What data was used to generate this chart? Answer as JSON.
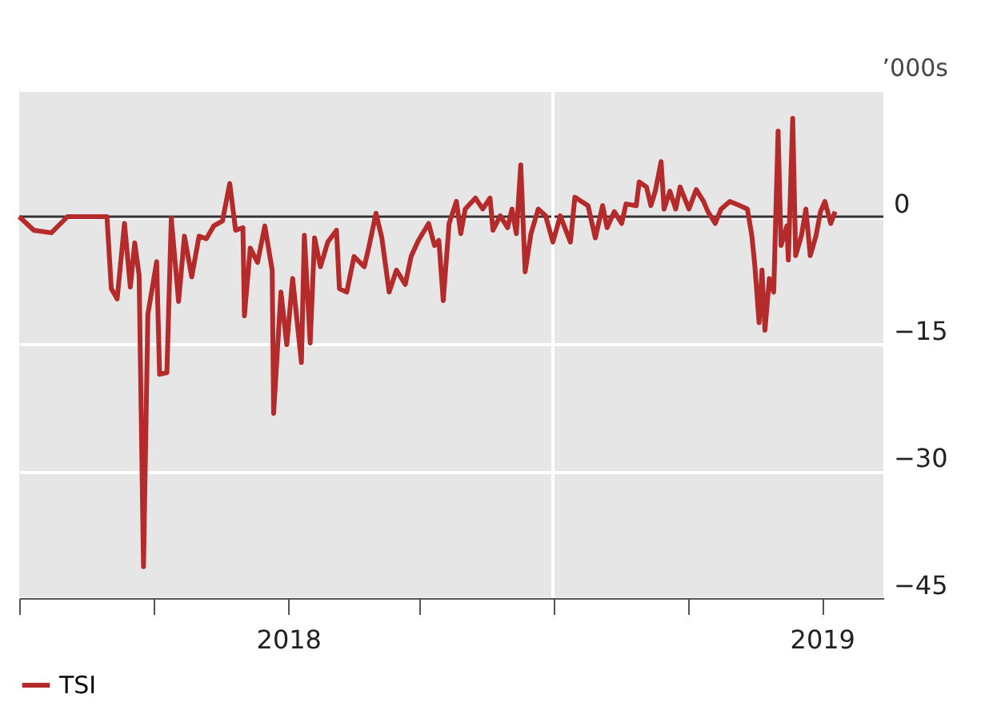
{
  "chart_data": {
    "type": "line",
    "ylabel": "’000s",
    "legend": "bottom left",
    "grid": "y",
    "line_style": "solid",
    "marker": "none",
    "xlim": [
      "2017-07-01",
      "2019-02-12"
    ],
    "ylim": [
      -45,
      15
    ],
    "yticks": [
      {
        "value": -45,
        "label": "−45"
      },
      {
        "value": -30,
        "label": "−30"
      },
      {
        "value": -15,
        "label": "−15"
      },
      0,
      {
        "value": 15,
        "label": null
      }
    ],
    "xticks": [
      {
        "value": "2017-07-01",
        "label": null
      },
      {
        "value": "2017-10-01",
        "label": null
      },
      {
        "value": "2018-01-01",
        "label": "2018"
      },
      {
        "value": "2018-04-01",
        "label": null
      },
      {
        "value": "2018-07-01",
        "label": null
      },
      {
        "value": "2018-10-01",
        "label": null
      },
      {
        "value": "2019-01-01",
        "label": "2019"
      }
    ],
    "ref_lines": [
      {
        "axis": "y",
        "value": 0,
        "label": null,
        "color": "#333333"
      },
      {
        "axis": "x",
        "value": "2018-07-01",
        "label": null,
        "color": "#ffffff"
      }
    ],
    "series": [
      {
        "name": "TSI",
        "color": "#b52a2a",
        "x": [
          "2017-07-01",
          "2017-07-11",
          "2017-07-23",
          "2017-08-03",
          "2017-08-30",
          "2017-09-02",
          "2017-09-06",
          "2017-09-11",
          "2017-09-15",
          "2017-09-18",
          "2017-09-21",
          "2017-09-24",
          "2017-09-27",
          "2017-10-03",
          "2017-10-05",
          "2017-10-10",
          "2017-10-13",
          "2017-10-18",
          "2017-10-22",
          "2017-10-27",
          "2017-11-01",
          "2017-11-06",
          "2017-11-11",
          "2017-11-17",
          "2017-11-22",
          "2017-11-26",
          "2017-12-01",
          "2017-12-02",
          "2017-12-06",
          "2017-12-11",
          "2017-12-16",
          "2017-12-21",
          "2017-12-22",
          "2017-12-27",
          "2017-12-31",
          "2018-01-04",
          "2018-01-10",
          "2018-01-12",
          "2018-01-16",
          "2018-01-19",
          "2018-01-23",
          "2018-01-28",
          "2018-02-03",
          "2018-02-05",
          "2018-02-10",
          "2018-02-15",
          "2018-02-22",
          "2018-02-25",
          "2018-03-02",
          "2018-03-06",
          "2018-03-11",
          "2018-03-16",
          "2018-03-22",
          "2018-03-26",
          "2018-03-31",
          "2018-04-07",
          "2018-04-11",
          "2018-04-14",
          "2018-04-17",
          "2018-04-21",
          "2018-04-26",
          "2018-04-29",
          "2018-05-02",
          "2018-05-09",
          "2018-05-14",
          "2018-05-19",
          "2018-05-21",
          "2018-05-26",
          "2018-05-31",
          "2018-06-03",
          "2018-06-06",
          "2018-06-09",
          "2018-06-12",
          "2018-06-16",
          "2018-06-21",
          "2018-06-26",
          "2018-07-01",
          "2018-07-06",
          "2018-07-13",
          "2018-07-16",
          "2018-07-25",
          "2018-07-30",
          "2018-08-04",
          "2018-08-07",
          "2018-08-12",
          "2018-08-17",
          "2018-08-20",
          "2018-08-27",
          "2018-08-29",
          "2018-09-03",
          "2018-09-06",
          "2018-09-09",
          "2018-09-13",
          "2018-09-15",
          "2018-09-19",
          "2018-09-23",
          "2018-09-26",
          "2018-10-02",
          "2018-10-07",
          "2018-10-12",
          "2018-10-15",
          "2018-10-20",
          "2018-10-24",
          "2018-10-30",
          "2018-11-06",
          "2018-11-11",
          "2018-11-14",
          "2018-11-16",
          "2018-11-19",
          "2018-11-21",
          "2018-11-23",
          "2018-11-26",
          "2018-11-29",
          "2018-12-02",
          "2018-12-04",
          "2018-12-08",
          "2018-12-09",
          "2018-12-12",
          "2018-12-14",
          "2018-12-18",
          "2018-12-21",
          "2018-12-24",
          "2018-12-28",
          "2018-12-31",
          "2019-01-03",
          "2019-01-07",
          "2019-01-10"
        ],
        "values": [
          0,
          -1.6,
          -1.9,
          0,
          0,
          -8.5,
          -9.7,
          -0.8,
          -8.3,
          -3.1,
          -6.9,
          -41.3,
          -11.5,
          -5.3,
          -18.6,
          -18.4,
          -0.2,
          -10,
          -2.3,
          -7.1,
          -2.3,
          -2.6,
          -1.1,
          -0.5,
          3.9,
          -1.6,
          -1.3,
          -11.7,
          -3.7,
          -5.4,
          -1.1,
          -6.3,
          -23.2,
          -8.9,
          -15.1,
          -7.3,
          -17.2,
          -2.2,
          -14.9,
          -2.5,
          -5.9,
          -3.0,
          -1.6,
          -8.5,
          -8.9,
          -4.7,
          -5.9,
          -3.7,
          0.4,
          -2.5,
          -8.9,
          -6.3,
          -8.0,
          -4.7,
          -2.8,
          -0.8,
          -3.4,
          -2.8,
          -9.9,
          -0.8,
          1.8,
          -2.0,
          0.9,
          2.2,
          0.9,
          2.2,
          -1.6,
          0.1,
          -1.3,
          0.9,
          -2.0,
          6.1,
          -6.5,
          -2.0,
          0.9,
          0.1,
          -3.0,
          0.1,
          -3.0,
          2.3,
          1.3,
          -2.5,
          1.3,
          -1.3,
          0.6,
          -0.8,
          1.5,
          1.3,
          4.1,
          3.5,
          1.3,
          3.0,
          6.5,
          0.9,
          3.0,
          0.9,
          3.5,
          0.9,
          3.2,
          1.8,
          0.6,
          -0.8,
          0.9,
          1.8,
          1.3,
          0.9,
          -2.2,
          -5.6,
          -12.5,
          -6.3,
          -13.4,
          -7.3,
          -8.9,
          10.1,
          -3.4,
          -1.1,
          -5.1,
          11.6,
          -4.6,
          -2.2,
          0.9,
          -4.6,
          -2.2,
          0.6,
          1.8,
          -0.8,
          0.6
        ]
      }
    ]
  }
}
